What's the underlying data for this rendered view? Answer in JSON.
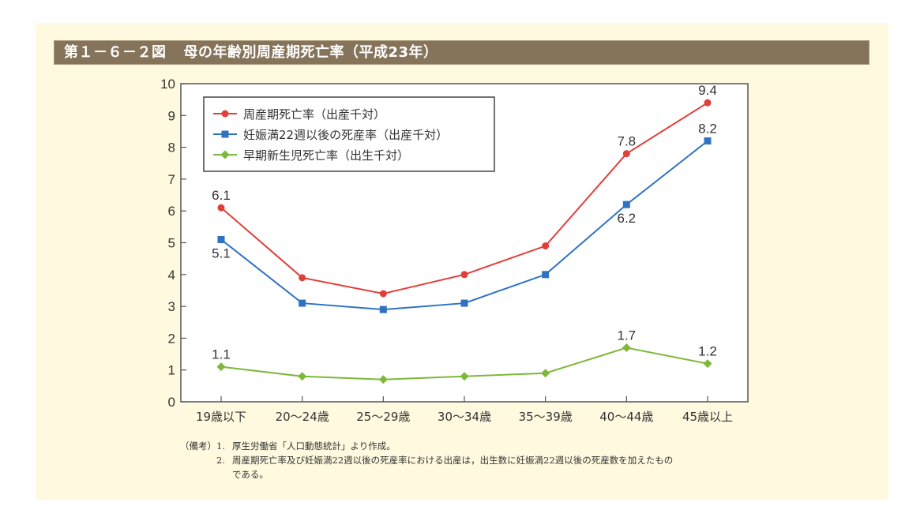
{
  "figure": {
    "number": "第１－６－２図",
    "title": "母の年齢別周産期死亡率（平成23年）"
  },
  "chart_data": {
    "type": "line",
    "title": "母の年齢別周産期死亡率（平成23年）",
    "xlabel": "",
    "ylabel": "",
    "categories": [
      "19歳以下",
      "20～24歳",
      "25～29歳",
      "30～34歳",
      "35～39歳",
      "40～44歳",
      "45歳以上"
    ],
    "ylim": [
      0,
      10
    ],
    "yticks": [
      "0",
      "1",
      "2",
      "3",
      "4",
      "5",
      "6",
      "7",
      "8",
      "9",
      "10"
    ],
    "grid": false,
    "legend_position": "top-left",
    "series": [
      {
        "name": "周産期死亡率（出産千対）",
        "color": "#e0403a",
        "marker": "circle",
        "values": [
          6.1,
          3.9,
          3.4,
          4.0,
          4.9,
          7.8,
          9.4
        ],
        "labels": [
          "6.1",
          null,
          null,
          null,
          null,
          "7.8",
          "9.4"
        ],
        "label_pos": [
          "above",
          null,
          null,
          null,
          null,
          "above",
          "above"
        ]
      },
      {
        "name": "妊娠満22週以後の死産率（出産千対）",
        "color": "#2f72c4",
        "marker": "square",
        "values": [
          5.1,
          3.1,
          2.9,
          3.1,
          4.0,
          6.2,
          8.2
        ],
        "labels": [
          "5.1",
          null,
          null,
          null,
          null,
          "6.2",
          "8.2"
        ],
        "label_pos": [
          "below",
          null,
          null,
          null,
          null,
          "below",
          "above"
        ]
      },
      {
        "name": "早期新生児死亡率（出生千対）",
        "color": "#7db83a",
        "marker": "diamond",
        "values": [
          1.1,
          0.8,
          0.7,
          0.8,
          0.9,
          1.7,
          1.2
        ],
        "labels": [
          "1.1",
          null,
          null,
          null,
          null,
          "1.7",
          "1.2"
        ],
        "label_pos": [
          "above",
          null,
          null,
          null,
          null,
          "above",
          "above"
        ]
      }
    ]
  },
  "notes": {
    "label": "（備考）",
    "items": [
      {
        "num": "1.",
        "text": "厚生労働省「人口動態統計」より作成。"
      },
      {
        "num": "2.",
        "text": "周産期死亡率及び妊娠満22週以後の死産率における出産は，出生数に妊娠満22週以後の死産数を加えたものである。"
      }
    ]
  }
}
